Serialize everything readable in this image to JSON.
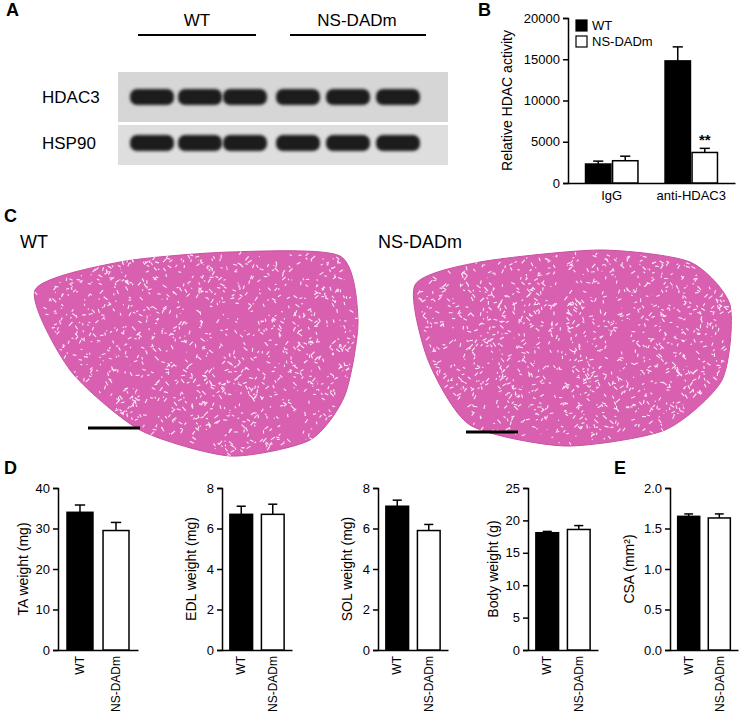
{
  "figure": {
    "panel_labels": [
      "A",
      "B",
      "C",
      "D",
      "E"
    ]
  },
  "blot": {
    "groups": [
      "WT",
      "NS-DADm"
    ],
    "rows": [
      "HDAC3",
      "HSP90"
    ]
  },
  "histology": {
    "labels": [
      "WT",
      "NS-DADm"
    ]
  },
  "chart_data": [
    {
      "type": "bar",
      "ylabel": "Relative HDAC activity",
      "categories": [
        "IgG",
        "anti-HDAC3"
      ],
      "series": [
        {
          "name": "WT",
          "color": "#000000",
          "values": [
            2300,
            14800
          ],
          "errors": [
            350,
            1700
          ]
        },
        {
          "name": "NS-DADm",
          "color": "#ffffff",
          "values": [
            2700,
            3700
          ],
          "errors": [
            550,
            500
          ]
        }
      ],
      "ylim": [
        0,
        20000
      ],
      "yticks": [
        0,
        5000,
        10000,
        15000,
        20000
      ],
      "legend": "upper left",
      "annotations": [
        {
          "text": "**",
          "category": "anti-HDAC3",
          "series": "NS-DADm"
        }
      ]
    },
    {
      "type": "bar",
      "ylabel": "TA weight (mg)",
      "categories": [
        "WT",
        "NS-DADm"
      ],
      "values": [
        34,
        29.5
      ],
      "errors": [
        1.8,
        2
      ],
      "colors": [
        "#000000",
        "#ffffff"
      ],
      "ylim": [
        0,
        40
      ],
      "yticks": [
        0,
        10,
        20,
        30,
        40
      ]
    },
    {
      "type": "bar",
      "ylabel": "EDL weight (mg)",
      "categories": [
        "WT",
        "NS-DADm"
      ],
      "values": [
        6.7,
        6.7
      ],
      "errors": [
        0.4,
        0.5
      ],
      "colors": [
        "#000000",
        "#ffffff"
      ],
      "ylim": [
        0,
        8
      ],
      "yticks": [
        0,
        2,
        4,
        6,
        8
      ]
    },
    {
      "type": "bar",
      "ylabel": "SOL weight (mg)",
      "categories": [
        "WT",
        "NS-DADm"
      ],
      "values": [
        7.1,
        5.9
      ],
      "errors": [
        0.3,
        0.3
      ],
      "colors": [
        "#000000",
        "#ffffff"
      ],
      "ylim": [
        0,
        8
      ],
      "yticks": [
        0,
        2,
        4,
        6,
        8
      ]
    },
    {
      "type": "bar",
      "ylabel": "Body weight (g)",
      "categories": [
        "WT",
        "NS-DADm"
      ],
      "values": [
        18.1,
        18.6
      ],
      "errors": [
        0.2,
        0.6
      ],
      "colors": [
        "#000000",
        "#ffffff"
      ],
      "ylim": [
        0,
        25
      ],
      "yticks": [
        0,
        5,
        10,
        15,
        20,
        25
      ]
    },
    {
      "type": "bar",
      "ylabel": "CSA (mm²)",
      "categories": [
        "WT",
        "NS-DADm"
      ],
      "values": [
        1.65,
        1.63
      ],
      "errors": [
        0.03,
        0.05
      ],
      "colors": [
        "#000000",
        "#ffffff"
      ],
      "ylim": [
        0,
        2
      ],
      "yticks": [
        {
          "value": 0,
          "label": "0.0"
        },
        {
          "value": 0.5,
          "label": "0.5"
        },
        {
          "value": 1,
          "label": "1.0"
        },
        {
          "value": 1.5,
          "label": "1.5"
        },
        {
          "value": 2,
          "label": "2.0"
        }
      ]
    }
  ]
}
